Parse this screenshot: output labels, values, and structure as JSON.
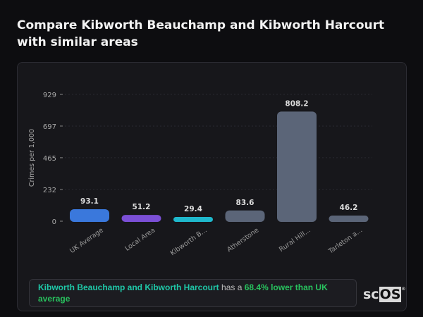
{
  "title": "Compare Kibworth Beauchamp and Kibworth Harcourt with similar areas",
  "chart_data": {
    "type": "bar",
    "ylabel": "Crimes per 1,000",
    "ylim": [
      0,
      929
    ],
    "yticks": [
      0,
      232,
      465,
      697,
      929
    ],
    "grid": true,
    "categories": [
      "UK Average",
      "Local Area",
      "Kibworth B...",
      "Atherstone",
      "Rural Hill...",
      "Tarleton a..."
    ],
    "values": [
      93.1,
      51.2,
      29.4,
      83.6,
      808.2,
      46.2
    ],
    "data_labels": [
      "93.1",
      "51.2",
      "29.4",
      "83.6",
      "808.2",
      "46.2"
    ],
    "colors": [
      "#3a78dc",
      "#7b4fd6",
      "#1fb8cc",
      "#5b6578",
      "#5b6578",
      "#5b6578"
    ]
  },
  "summary": {
    "area": "Kibworth Beauchamp and Kibworth Harcourt",
    "middle": " has a ",
    "highlight": "68.4% lower than UK average"
  },
  "logo": {
    "text": "scOS",
    "mark": "®"
  }
}
